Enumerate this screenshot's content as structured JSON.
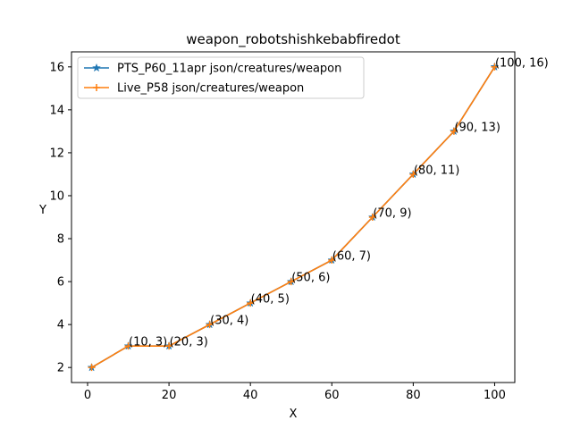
{
  "chart_data": {
    "type": "line",
    "title": "weapon_robotshishkebabfiredot",
    "xlabel": "X",
    "ylabel": "Y",
    "xlim": [
      -3.95,
      104.95
    ],
    "ylim": [
      1.3,
      16.7
    ],
    "xticks": [
      0,
      20,
      40,
      60,
      80,
      100
    ],
    "yticks": [
      2,
      4,
      6,
      8,
      10,
      12,
      14,
      16
    ],
    "grid": false,
    "legend_position": "upper-left",
    "x": [
      1,
      10,
      20,
      30,
      40,
      50,
      60,
      70,
      80,
      90,
      100
    ],
    "series": [
      {
        "name": "PTS_P60_11apr json/creatures/weapon",
        "color": "#1f77b4",
        "marker": "star",
        "values": [
          2,
          3,
          3,
          4,
          5,
          6,
          7,
          9,
          11,
          13,
          16
        ]
      },
      {
        "name": "Live_P58 json/creatures/weapon",
        "color": "#ff7f0e",
        "marker": "plus",
        "values": [
          2,
          3,
          3,
          4,
          5,
          6,
          7,
          9,
          11,
          13,
          16
        ]
      }
    ],
    "annotations": [
      {
        "x": 10,
        "y": 3,
        "text": "(10, 3)"
      },
      {
        "x": 20,
        "y": 3,
        "text": "(20, 3)"
      },
      {
        "x": 30,
        "y": 4,
        "text": "(30, 4)"
      },
      {
        "x": 40,
        "y": 5,
        "text": "(40, 5)"
      },
      {
        "x": 50,
        "y": 6,
        "text": "(50, 6)"
      },
      {
        "x": 60,
        "y": 7,
        "text": "(60, 7)"
      },
      {
        "x": 70,
        "y": 9,
        "text": "(70, 9)"
      },
      {
        "x": 80,
        "y": 11,
        "text": "(80, 11)"
      },
      {
        "x": 90,
        "y": 13,
        "text": "(90, 13)"
      },
      {
        "x": 100,
        "y": 16,
        "text": "(100, 16)"
      }
    ]
  }
}
